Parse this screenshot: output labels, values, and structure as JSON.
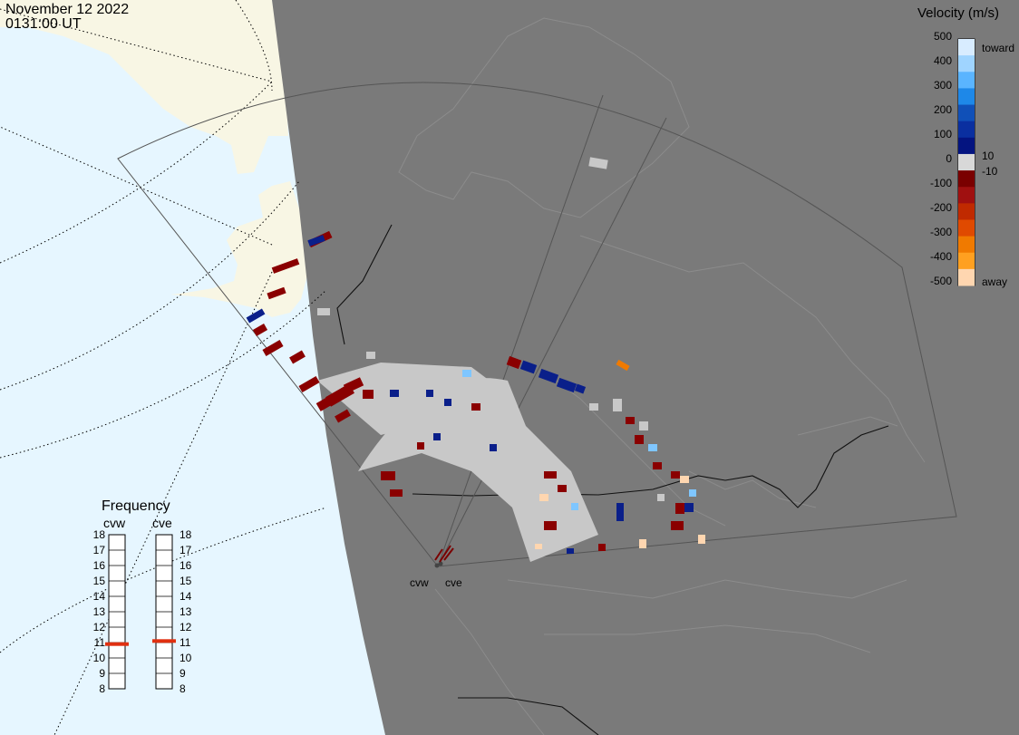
{
  "header": {
    "date": "November 12 2022",
    "time": "0131:00 UT"
  },
  "colorbar": {
    "title": "Velocity (m/s)",
    "ticks": [
      "500",
      "400",
      "300",
      "200",
      "100",
      "0",
      "-100",
      "-200",
      "-300",
      "-400",
      "-500"
    ],
    "low_mark": "10",
    "neg_low_mark": "-10",
    "toward_label": "toward",
    "away_label": "away",
    "colors": [
      "#d8ecff",
      "#9fd4ff",
      "#5ab4ff",
      "#1e88e8",
      "#1050b8",
      "#0a2fa0",
      "#041480",
      "#d8d8d8",
      "#7a0000",
      "#a01010",
      "#c02a00",
      "#e04a00",
      "#f07a00",
      "#ffa020",
      "#ffd6b0"
    ]
  },
  "frequency": {
    "title": "Frequency",
    "stations": [
      "cvw",
      "cve"
    ],
    "scale": [
      "18",
      "17",
      "16",
      "15",
      "14",
      "13",
      "12",
      "11",
      "10",
      "9",
      "8"
    ],
    "cvw_mhz": 10.9,
    "cve_mhz": 11.1
  },
  "radars": {
    "labels": [
      "cvw",
      "cve"
    ]
  },
  "map": {
    "ocean_color": "#e6f6ff",
    "land_color": "#f8f6e4",
    "night_color": "#7a7a7a",
    "scatter_ground_color": "#c8c8c8"
  }
}
